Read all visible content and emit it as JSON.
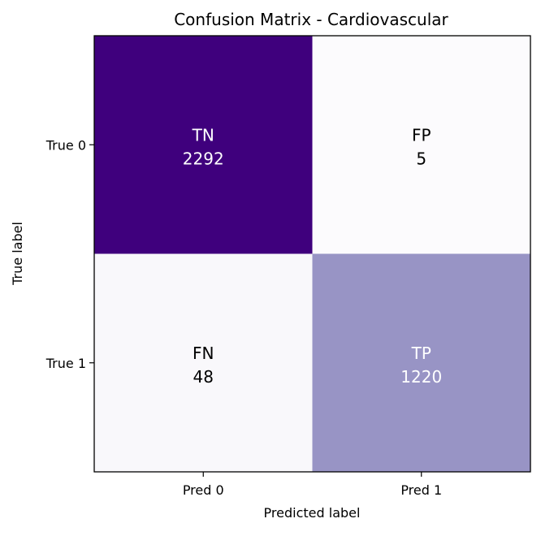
{
  "chart_data": {
    "type": "heatmap",
    "title": "Confusion Matrix - Cardiovascular",
    "xlabel": "Predicted label",
    "ylabel": "True label",
    "x_categories": [
      "Pred 0",
      "Pred 1"
    ],
    "y_categories": [
      "True 0",
      "True 1"
    ],
    "cells": [
      [
        {
          "label": "TN",
          "value": 2292
        },
        {
          "label": "FP",
          "value": 5
        }
      ],
      [
        {
          "label": "FN",
          "value": 48
        },
        {
          "label": "TP",
          "value": 1220
        }
      ]
    ],
    "colormap": "Purples",
    "cell_colors": [
      [
        "#3f007d",
        "#fcfbfd"
      ],
      [
        "#f9f8fb",
        "#9894c5"
      ]
    ],
    "text_colors": [
      [
        "#ffffff",
        "#000000"
      ],
      [
        "#000000",
        "#ffffff"
      ]
    ]
  }
}
